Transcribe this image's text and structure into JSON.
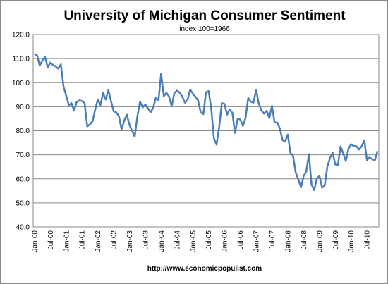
{
  "chart_data": {
    "type": "line",
    "title": "University of Michigan Consumer Sentiment",
    "subtitle": "index 100=1966",
    "footer": "http://www.economicpopulist.com",
    "categories": [
      "Jan-00",
      null,
      null,
      null,
      null,
      null,
      "Jul-00",
      null,
      null,
      null,
      null,
      null,
      "Jan-01",
      null,
      null,
      null,
      null,
      null,
      "Jul-01",
      null,
      null,
      null,
      null,
      null,
      "Jan-02",
      null,
      null,
      null,
      null,
      null,
      "Jul-02",
      null,
      null,
      null,
      null,
      null,
      "Jan-03",
      null,
      null,
      null,
      null,
      null,
      "Jul-03",
      null,
      null,
      null,
      null,
      null,
      "Jan-04",
      null,
      null,
      null,
      null,
      null,
      "Jul-04",
      null,
      null,
      null,
      null,
      null,
      "Jan-05",
      null,
      null,
      null,
      null,
      null,
      "Jul-05",
      null,
      null,
      null,
      null,
      null,
      "Jan-06",
      null,
      null,
      null,
      null,
      null,
      "Jul-06",
      null,
      null,
      null,
      null,
      null,
      "Jan-07",
      null,
      null,
      null,
      null,
      null,
      "Jul-07",
      null,
      null,
      null,
      null,
      null,
      "Jan-08",
      null,
      null,
      null,
      null,
      null,
      "Jul-08",
      null,
      null,
      null,
      null,
      null,
      "Jan-09",
      null,
      null,
      null,
      null,
      null,
      "Jul-09",
      null,
      null,
      null,
      null,
      null,
      "Jan-10",
      null,
      null,
      null,
      null,
      null,
      "Jul-10",
      null,
      null,
      null,
      null
    ],
    "series": [
      {
        "name": "Consumer Sentiment",
        "color": "#4a7ebb",
        "values": [
          112.0,
          111.3,
          107.1,
          109.2,
          110.7,
          106.4,
          108.3,
          107.3,
          106.8,
          105.8,
          107.6,
          98.4,
          94.7,
          90.6,
          91.5,
          88.4,
          92.0,
          92.6,
          92.4,
          91.5,
          81.8,
          82.7,
          83.9,
          88.8,
          93.0,
          90.7,
          95.7,
          93.0,
          96.9,
          92.4,
          88.1,
          87.6,
          86.1,
          80.6,
          84.2,
          86.7,
          82.4,
          79.9,
          77.6,
          86.0,
          92.1,
          89.7,
          90.9,
          89.3,
          87.7,
          89.6,
          93.7,
          92.6,
          103.8,
          94.4,
          95.8,
          94.2,
          90.2,
          95.6,
          96.7,
          95.9,
          94.2,
          91.7,
          92.8,
          97.1,
          95.5,
          94.1,
          92.6,
          87.7,
          86.9,
          96.0,
          96.5,
          89.1,
          76.9,
          74.2,
          81.6,
          91.5,
          91.2,
          86.7,
          88.9,
          87.4,
          79.1,
          84.9,
          84.7,
          82.0,
          85.4,
          93.6,
          92.1,
          91.7,
          96.9,
          91.3,
          88.4,
          87.1,
          88.3,
          85.3,
          90.4,
          83.4,
          83.4,
          80.9,
          76.1,
          75.5,
          78.4,
          70.8,
          69.5,
          62.6,
          59.8,
          56.4,
          61.2,
          63.0,
          70.3,
          57.6,
          55.3,
          60.1,
          61.2,
          56.3,
          57.3,
          65.1,
          68.7,
          70.8,
          66.0,
          65.7,
          73.5,
          70.6,
          67.4,
          72.5,
          74.4,
          73.6,
          73.6,
          72.2,
          73.6,
          76.0,
          67.8,
          68.9,
          68.2,
          67.7,
          71.6
        ]
      }
    ],
    "ylim": [
      40,
      120
    ],
    "yticks": [
      {
        "value": 40,
        "label": "40.0"
      },
      {
        "value": 50,
        "label": "50.0"
      },
      {
        "value": 60,
        "label": "60.0"
      },
      {
        "value": 70,
        "label": "70.0"
      },
      {
        "value": 80,
        "label": "80.0"
      },
      {
        "value": 90,
        "label": "90.0"
      },
      {
        "value": 100,
        "label": "100.0"
      },
      {
        "value": 110,
        "label": "110.0"
      },
      {
        "value": 120,
        "label": "120.0"
      }
    ],
    "grid": true
  }
}
